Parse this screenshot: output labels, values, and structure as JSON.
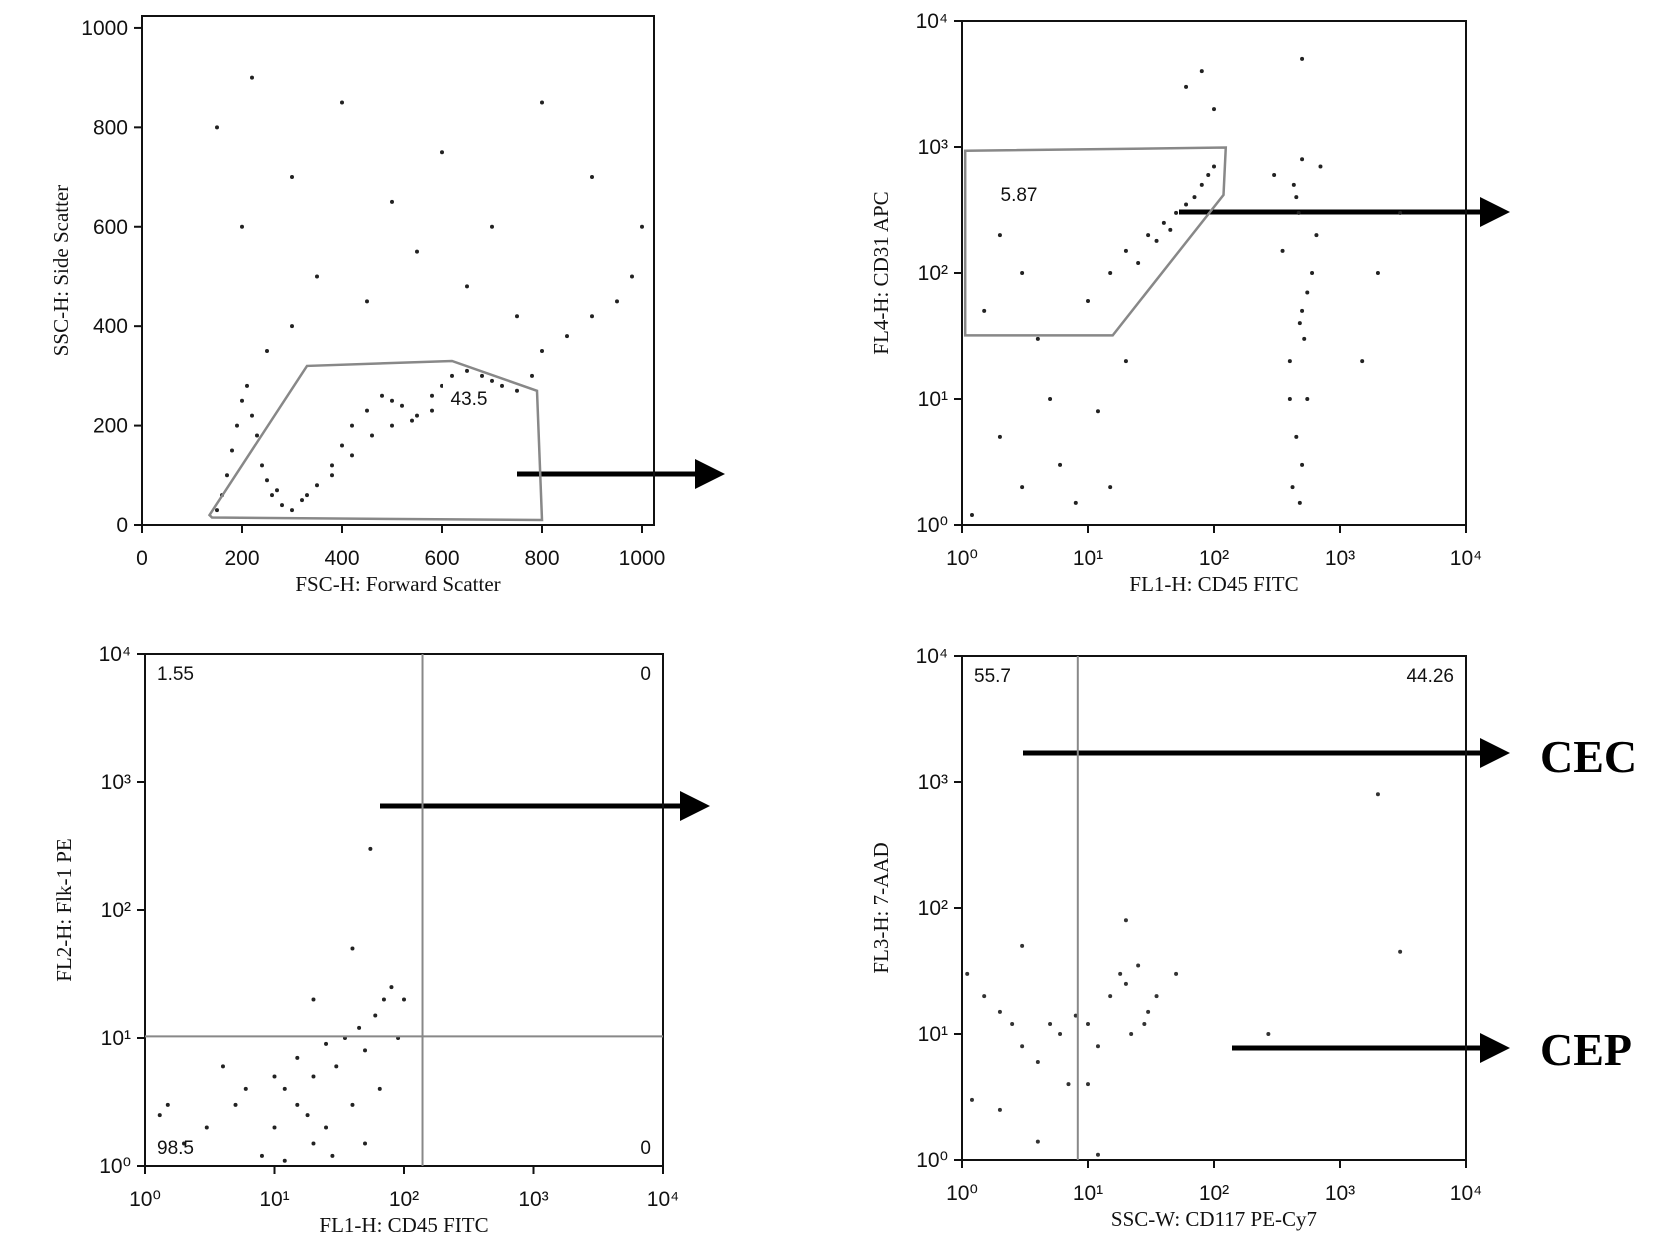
{
  "chart_data": [
    {
      "type": "scatter",
      "xlabel": "FSC-H: Forward Scatter",
      "ylabel": "SSC-H: Side Scatter",
      "color": "#222",
      "xlim": [
        0,
        1024
      ],
      "ylim": [
        0,
        1024
      ],
      "xticks": [
        0,
        200,
        400,
        600,
        800,
        1000
      ],
      "yticks": [
        0,
        200,
        400,
        600,
        800,
        1000
      ],
      "xlog": false,
      "ylog": false,
      "x": [
        150,
        160,
        170,
        180,
        190,
        200,
        210,
        220,
        230,
        240,
        250,
        260,
        280,
        300,
        320,
        350,
        380,
        400,
        420,
        450,
        480,
        500,
        520,
        550,
        580,
        600,
        620,
        650,
        680,
        700,
        720,
        750,
        780,
        800,
        850,
        900,
        950,
        980,
        200,
        150,
        220,
        300,
        400,
        500,
        600,
        700,
        800,
        900,
        1000,
        350,
        450,
        550,
        650,
        750,
        250,
        300,
        460,
        500,
        540,
        580,
        420,
        380,
        330,
        270
      ],
      "y": [
        30,
        60,
        100,
        150,
        200,
        250,
        280,
        220,
        180,
        120,
        90,
        60,
        40,
        30,
        50,
        80,
        120,
        160,
        200,
        230,
        260,
        250,
        240,
        220,
        260,
        280,
        300,
        310,
        300,
        290,
        280,
        270,
        300,
        350,
        380,
        420,
        450,
        500,
        600,
        800,
        900,
        700,
        850,
        650,
        750,
        600,
        850,
        700,
        600,
        500,
        450,
        550,
        480,
        420,
        350,
        400,
        180,
        200,
        210,
        230,
        140,
        100,
        60,
        70
      ],
      "gate": {
        "label": 43.5,
        "x": [
          135,
          330,
          620,
          790,
          800,
          140
        ],
        "y": [
          20,
          320,
          330,
          270,
          10,
          15
        ]
      }
    },
    {
      "type": "scatter",
      "xlabel": "FL1-H: CD45 FITC",
      "ylabel": "FL4-H: CD31 APC",
      "color": "#222",
      "xlim": [
        1,
        10000
      ],
      "ylim": [
        1,
        10000
      ],
      "xlog": true,
      "ylog": true,
      "xticks": [
        {
          "value": 1,
          "label": "10⁰"
        },
        {
          "value": 10,
          "label": "10¹"
        },
        {
          "value": 100,
          "label": "10²"
        },
        {
          "value": 1000,
          "label": "10³"
        },
        {
          "value": 10000,
          "label": "10⁴"
        }
      ],
      "yticks": [
        {
          "value": 1,
          "label": "10⁰"
        },
        {
          "value": 10,
          "label": "10¹"
        },
        {
          "value": 100,
          "label": "10²"
        },
        {
          "value": 1000,
          "label": "10³"
        },
        {
          "value": 10000,
          "label": "10⁴"
        }
      ],
      "x": [
        20,
        30,
        40,
        50,
        60,
        25,
        35,
        45,
        70,
        80,
        15,
        10,
        100,
        90,
        450,
        430,
        470,
        500,
        480,
        520,
        400,
        550,
        450,
        500,
        420,
        480,
        600,
        350,
        650,
        300,
        700,
        500,
        400,
        550,
        2,
        3,
        5,
        8,
        1.5,
        2,
        4,
        6,
        12,
        15,
        20,
        3,
        1.2,
        80,
        60,
        100,
        500,
        2000,
        3000,
        1500
      ],
      "y": [
        150,
        200,
        250,
        300,
        350,
        120,
        180,
        220,
        400,
        500,
        100,
        60,
        700,
        600,
        400,
        500,
        300,
        50,
        40,
        30,
        20,
        10,
        5,
        3,
        2,
        1.5,
        100,
        150,
        200,
        600,
        700,
        800,
        10,
        70,
        5,
        2,
        10,
        1.5,
        50,
        200,
        30,
        3,
        8,
        2,
        20,
        100,
        1.2,
        4000,
        3000,
        2000,
        5000,
        100,
        300,
        20
      ],
      "gate": {
        "label": 5.87,
        "x": [
          1.06,
          124,
          119,
          15.7,
          1.06
        ],
        "y": [
          933,
          990,
          417,
          32,
          32
        ]
      }
    },
    {
      "type": "scatter",
      "xlabel": "FL1-H: CD45 FITC",
      "ylabel": "FL2-H: Flk-1 PE",
      "color": "#222",
      "xlim": [
        1,
        10000
      ],
      "ylim": [
        1,
        10000
      ],
      "xlog": true,
      "ylog": true,
      "xticks": [
        {
          "value": 1,
          "label": "10⁰"
        },
        {
          "value": 10,
          "label": "10¹"
        },
        {
          "value": 100,
          "label": "10²"
        },
        {
          "value": 1000,
          "label": "10³"
        },
        {
          "value": 10000,
          "label": "10⁴"
        }
      ],
      "yticks": [
        {
          "value": 1,
          "label": "10⁰"
        },
        {
          "value": 10,
          "label": "10¹"
        },
        {
          "value": 100,
          "label": "10²"
        },
        {
          "value": 1000,
          "label": "10³"
        },
        {
          "value": 10000,
          "label": "10⁴"
        }
      ],
      "x": [
        2,
        3,
        5,
        8,
        10,
        12,
        15,
        20,
        25,
        30,
        40,
        50,
        60,
        70,
        80,
        20,
        15,
        10,
        6,
        35,
        45,
        25,
        18,
        28,
        50,
        65,
        55,
        40,
        20,
        1.5,
        1.3,
        4,
        100,
        90,
        12
      ],
      "y": [
        1.5,
        2,
        3,
        1.2,
        2,
        4,
        3,
        5,
        2,
        6,
        3,
        8,
        15,
        20,
        25,
        1.5,
        7,
        5,
        4,
        10,
        12,
        9,
        2.5,
        1.2,
        1.5,
        4,
        300,
        50,
        20,
        3,
        2.5,
        6,
        20,
        10,
        1.1
      ],
      "quadrant": {
        "x": 139,
        "y": 10.3
      },
      "quadrant_labels": [
        1.55,
        0,
        98.5,
        0
      ]
    },
    {
      "type": "scatter",
      "xlabel": "SSC-W: CD117 PE-Cy7",
      "ylabel": "FL3-H: 7-AAD",
      "color": "#333",
      "xlim": [
        1,
        10000
      ],
      "ylim": [
        1,
        10000
      ],
      "xlog": true,
      "ylog": true,
      "xticks": [
        {
          "value": 1,
          "label": "10⁰"
        },
        {
          "value": 10,
          "label": "10¹"
        },
        {
          "value": 100,
          "label": "10²"
        },
        {
          "value": 1000,
          "label": "10³"
        },
        {
          "value": 10000,
          "label": "10⁴"
        }
      ],
      "yticks": [
        {
          "value": 1,
          "label": "10⁰"
        },
        {
          "value": 10,
          "label": "10¹"
        },
        {
          "value": 100,
          "label": "10²"
        },
        {
          "value": 1000,
          "label": "10³"
        },
        {
          "value": 10000,
          "label": "10⁴"
        }
      ],
      "x": [
        1.1,
        1.5,
        2,
        2.5,
        3,
        4,
        5,
        6,
        8,
        10,
        12,
        15,
        18,
        20,
        25,
        30,
        35,
        20,
        3,
        1.2,
        2,
        4,
        12,
        50,
        270,
        2000,
        3000,
        7,
        10,
        22,
        28
      ],
      "y": [
        30,
        20,
        15,
        12,
        8,
        6,
        12,
        10,
        14,
        12,
        8,
        20,
        30,
        25,
        35,
        15,
        20,
        80,
        50,
        3,
        2.5,
        1.4,
        1.1,
        30,
        10,
        800,
        45,
        4,
        4,
        10,
        12
      ],
      "quadrant": {
        "x": 8.3
      },
      "quadrant_labels": [
        55.7,
        44.26
      ],
      "annotations": [
        "CEC",
        "CEP"
      ]
    }
  ]
}
